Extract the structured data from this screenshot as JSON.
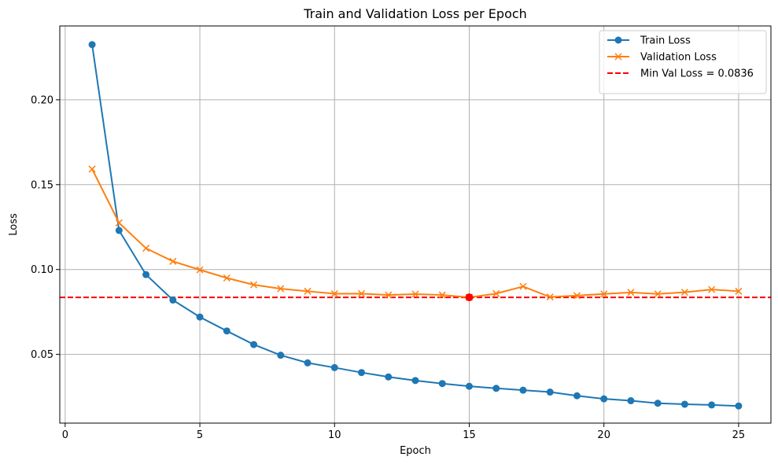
{
  "chart_data": {
    "type": "line",
    "title": "Train and Validation Loss per Epoch",
    "xlabel": "Epoch",
    "ylabel": "Loss",
    "xlim": [
      -0.2,
      26.2
    ],
    "ylim": [
      0.0095,
      0.2435
    ],
    "xticks": [
      0,
      5,
      10,
      15,
      20,
      25
    ],
    "yticks": [
      0.05,
      0.1,
      0.15,
      0.2
    ],
    "ytick_labels": [
      "0.05",
      "0.10",
      "0.15",
      "0.20"
    ],
    "grid": true,
    "legend_position": "top-right",
    "x": [
      1,
      2,
      3,
      4,
      5,
      6,
      7,
      8,
      9,
      10,
      11,
      12,
      13,
      14,
      15,
      16,
      17,
      18,
      19,
      20,
      21,
      22,
      23,
      24,
      25
    ],
    "series": [
      {
        "name": "Train Loss",
        "color": "#1f77b4",
        "marker": "circle",
        "values": [
          0.2325,
          0.123,
          0.097,
          0.082,
          0.072,
          0.0638,
          0.0558,
          0.0495,
          0.045,
          0.0422,
          0.0393,
          0.0367,
          0.0346,
          0.0328,
          0.0312,
          0.03,
          0.0289,
          0.0278,
          0.0256,
          0.0238,
          0.0227,
          0.0212,
          0.0206,
          0.0202,
          0.0196
        ]
      },
      {
        "name": "Validation Loss",
        "color": "#ff7f0e",
        "marker": "x",
        "values": [
          0.1592,
          0.1275,
          0.1125,
          0.1048,
          0.0998,
          0.095,
          0.091,
          0.0887,
          0.0872,
          0.0857,
          0.0858,
          0.085,
          0.0855,
          0.085,
          0.0836,
          0.0858,
          0.09,
          0.0838,
          0.0846,
          0.0856,
          0.0865,
          0.0856,
          0.0866,
          0.0882,
          0.0872
        ]
      }
    ],
    "reference_line": {
      "name": "Min Val Loss = 0.0836",
      "value": 0.0836,
      "color": "#ff0000",
      "style": "dashed"
    },
    "highlight_point": {
      "x": 15,
      "y": 0.0836,
      "color": "#ff0000"
    }
  }
}
